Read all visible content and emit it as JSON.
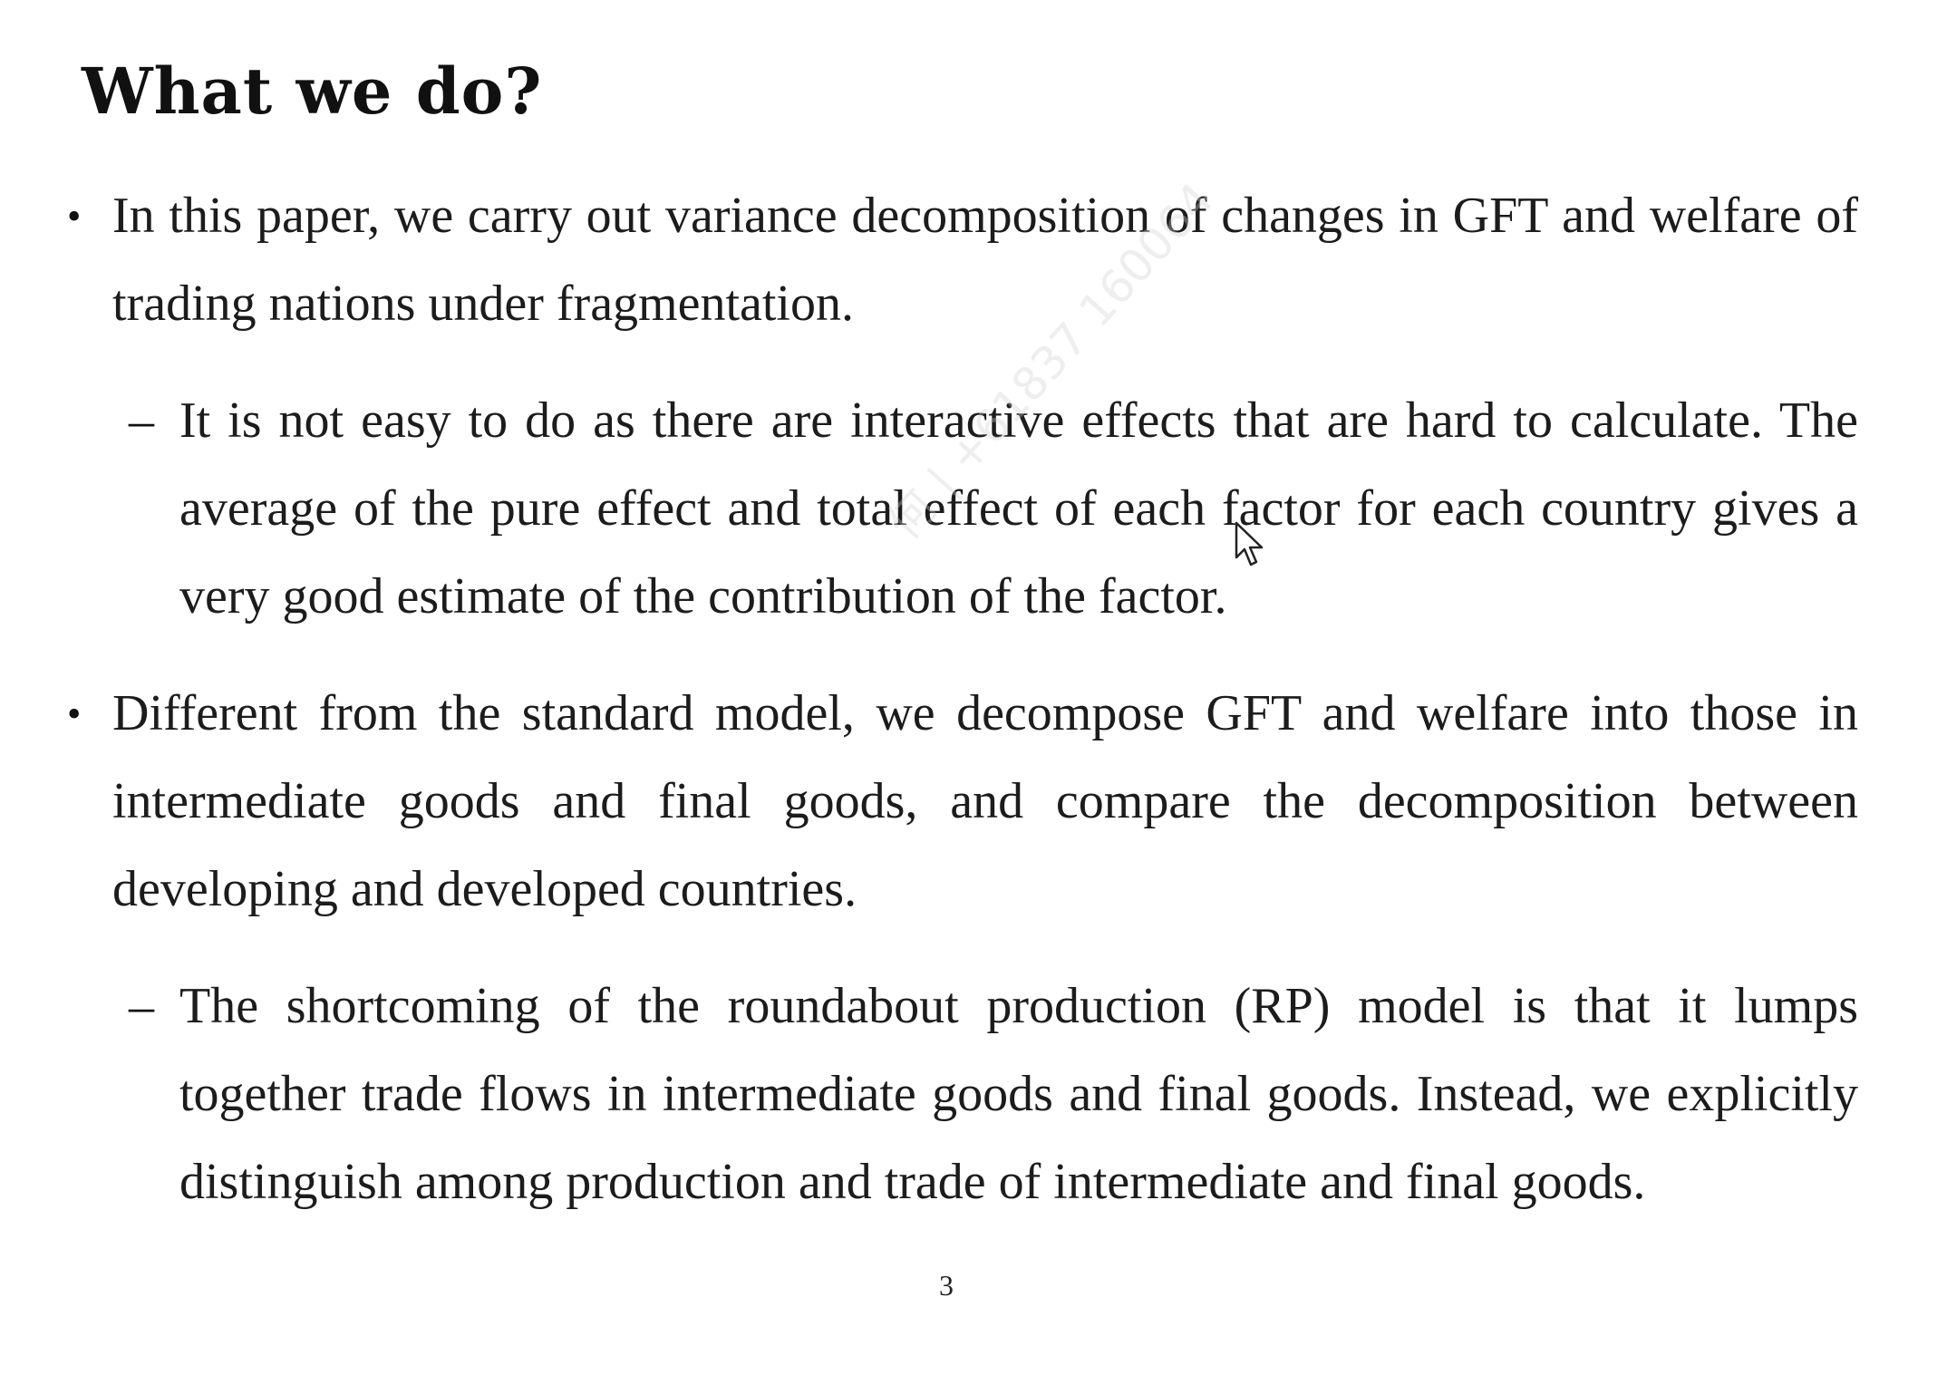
{
  "slide": {
    "title": "What we do?",
    "items": [
      {
        "marker": "•",
        "text": "In this paper, we carry out variance decomposition of changes in GFT and welfare of trading nations under fragmentation."
      },
      {
        "marker": "–",
        "text": "It is not easy to do as there are interactive effects that are hard to calculate. The average of the pure effect and total effect of each factor for each country gives a very good estimate of the contribution of the factor."
      },
      {
        "marker": "•",
        "text": "Different from the standard model, we decompose GFT and welfare into those in intermediate goods and final goods, and compare the decomposition between developing and developed countries."
      },
      {
        "marker": "–",
        "text": "The shortcoming of the roundabout production (RP) model is that it lumps together trade flows in intermediate goods and final goods. Instead, we explicitly distinguish among production and trade of intermediate and final goods."
      }
    ],
    "page_number": "3"
  },
  "overlay": {
    "watermark_text": "何 | +61837 160064",
    "cursor_icon": "mouse-pointer-icon"
  }
}
